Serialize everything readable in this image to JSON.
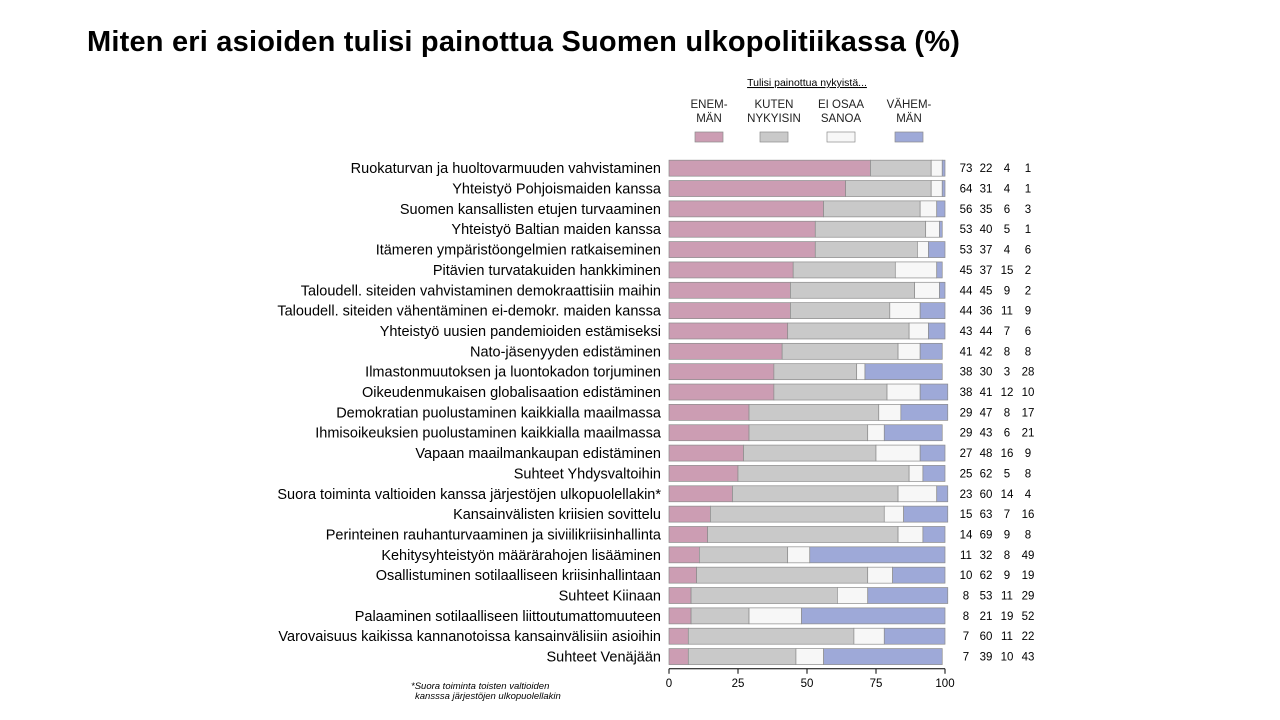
{
  "page": {
    "title": "Miten eri asioiden tulisi painottua Suomen ulkopolitiikassa (%)"
  },
  "chart_data": {
    "type": "bar",
    "orientation": "horizontal",
    "stacked": true,
    "title": "Miten eri asioiden tulisi painottua Suomen ulkopolitiikassa (%)",
    "legend_title": "Tulisi painottua nykyistä...",
    "xlim": [
      0,
      100
    ],
    "xticks": [
      "0",
      "25",
      "50",
      "75",
      "100"
    ],
    "footnote": [
      "*Suora toiminta toisten valtioiden",
      "kansssa järjestöjen ulkopuolellakin"
    ],
    "series": [
      {
        "name": "ENEM-\nMÄN",
        "color": "#cc9db3"
      },
      {
        "name": "KUTEN\nNYKYISIN",
        "color": "#c9c9c9"
      },
      {
        "name": "EI OSAA\nSANOA",
        "color": "#f7f7f7"
      },
      {
        "name": "VÄHEM-\nMÄN",
        "color": "#9ea9d8"
      }
    ],
    "categories": [
      "Ruokaturvan ja huoltovarmuuden vahvistaminen",
      "Yhteistyö Pohjoismaiden kanssa",
      "Suomen kansallisten etujen turvaaminen",
      "Yhteistyö Baltian maiden kanssa",
      "Itämeren ympäristöongelmien ratkaiseminen",
      "Pitävien turvatakuiden hankkiminen",
      "Taloudell. siteiden vahvistaminen demokraattisiin maihin",
      "Taloudell. siteiden vähentäminen ei-demokr. maiden kanssa",
      "Yhteistyö uusien pandemioiden estämiseksi",
      "Nato-jäsenyyden edistäminen",
      "Ilmastonmuutoksen ja luontokadon torjuminen",
      "Oikeudenmukaisen globalisaation edistäminen",
      "Demokratian puolustaminen kaikkialla maailmassa",
      "Ihmisoikeuksien puolustaminen kaikkialla maailmassa",
      "Vapaan maailmankaupan edistäminen",
      "Suhteet Yhdysvaltoihin",
      "Suora toiminta valtioiden kanssa järjestöjen ulkopuolellakin*",
      "Kansainvälisten kriisien sovittelu",
      "Perinteinen rauhanturvaaminen ja siviilikriisinhallinta",
      "Kehitysyhteistyön määrärahojen lisääminen",
      "Osallistuminen sotilaalliseen kriisinhallintaan",
      "Suhteet Kiinaan",
      "Palaaminen sotilaalliseen liittoutumattomuuteen",
      "Varovaisuus kaikissa kannanotoissa kansainvälisiin asioihin",
      "Suhteet Venäjään"
    ],
    "values": [
      [
        73,
        22,
        4,
        1
      ],
      [
        64,
        31,
        4,
        1
      ],
      [
        56,
        35,
        6,
        3
      ],
      [
        53,
        40,
        5,
        1
      ],
      [
        53,
        37,
        4,
        6
      ],
      [
        45,
        37,
        15,
        2
      ],
      [
        44,
        45,
        9,
        2
      ],
      [
        44,
        36,
        11,
        9
      ],
      [
        43,
        44,
        7,
        6
      ],
      [
        41,
        42,
        8,
        8
      ],
      [
        38,
        30,
        3,
        28
      ],
      [
        38,
        41,
        12,
        10
      ],
      [
        29,
        47,
        8,
        17
      ],
      [
        29,
        43,
        6,
        21
      ],
      [
        27,
        48,
        16,
        9
      ],
      [
        25,
        62,
        5,
        8
      ],
      [
        23,
        60,
        14,
        4
      ],
      [
        15,
        63,
        7,
        16
      ],
      [
        14,
        69,
        9,
        8
      ],
      [
        11,
        32,
        8,
        49
      ],
      [
        10,
        62,
        9,
        19
      ],
      [
        8,
        53,
        11,
        29
      ],
      [
        8,
        21,
        19,
        52
      ],
      [
        7,
        60,
        11,
        22
      ],
      [
        7,
        39,
        10,
        43
      ]
    ]
  }
}
